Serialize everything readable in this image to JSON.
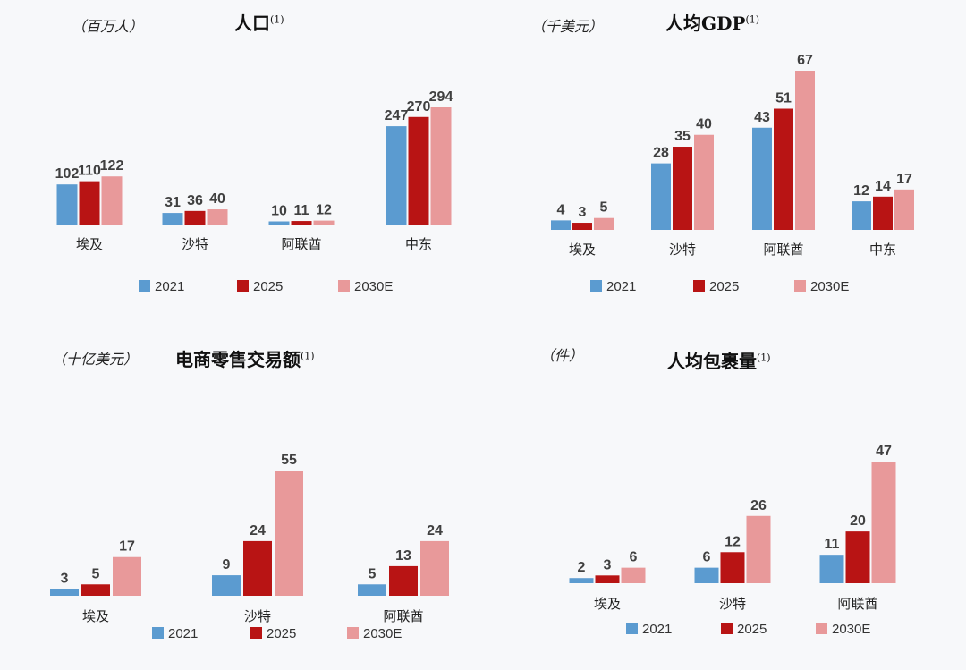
{
  "colors": {
    "2021": "#5b9bd0",
    "2025": "#b81414",
    "2030E": "#e8999a"
  },
  "chart_data": [
    {
      "type": "bar",
      "title": "人口",
      "title_note": "(1)",
      "unit": "（百万人）",
      "categories": [
        "埃及",
        "沙特",
        "阿联酋",
        "中东"
      ],
      "series": [
        {
          "name": "2021",
          "values": [
            102,
            31,
            10,
            247
          ]
        },
        {
          "name": "2025",
          "values": [
            110,
            36,
            11,
            270
          ]
        },
        {
          "name": "2030E",
          "values": [
            122,
            40,
            12,
            294
          ]
        }
      ],
      "legend": "bottom"
    },
    {
      "type": "bar",
      "title": "人均GDP",
      "title_note": "(1)",
      "unit": "（千美元）",
      "categories": [
        "埃及",
        "沙特",
        "阿联酋",
        "中东"
      ],
      "series": [
        {
          "name": "2021",
          "values": [
            4,
            28,
            43,
            12
          ]
        },
        {
          "name": "2025",
          "values": [
            3,
            35,
            51,
            14
          ]
        },
        {
          "name": "2030E",
          "values": [
            5,
            40,
            67,
            17
          ]
        }
      ],
      "legend": "bottom"
    },
    {
      "type": "bar",
      "title": "电商零售交易额",
      "title_note": "(1)",
      "unit": "（十亿美元）",
      "categories": [
        "埃及",
        "沙特",
        "阿联酋"
      ],
      "series": [
        {
          "name": "2021",
          "values": [
            3,
            9,
            5
          ]
        },
        {
          "name": "2025",
          "values": [
            5,
            24,
            13
          ]
        },
        {
          "name": "2030E",
          "values": [
            17,
            55,
            24
          ]
        }
      ],
      "legend": "bottom"
    },
    {
      "type": "bar",
      "title": "人均包裹量",
      "title_note": "(1)",
      "unit": "（件）",
      "categories": [
        "埃及",
        "沙特",
        "阿联酋"
      ],
      "series": [
        {
          "name": "2021",
          "values": [
            2,
            6,
            11
          ]
        },
        {
          "name": "2025",
          "values": [
            3,
            12,
            20
          ]
        },
        {
          "name": "2030E",
          "values": [
            6,
            26,
            47
          ]
        }
      ],
      "legend": "bottom"
    }
  ]
}
